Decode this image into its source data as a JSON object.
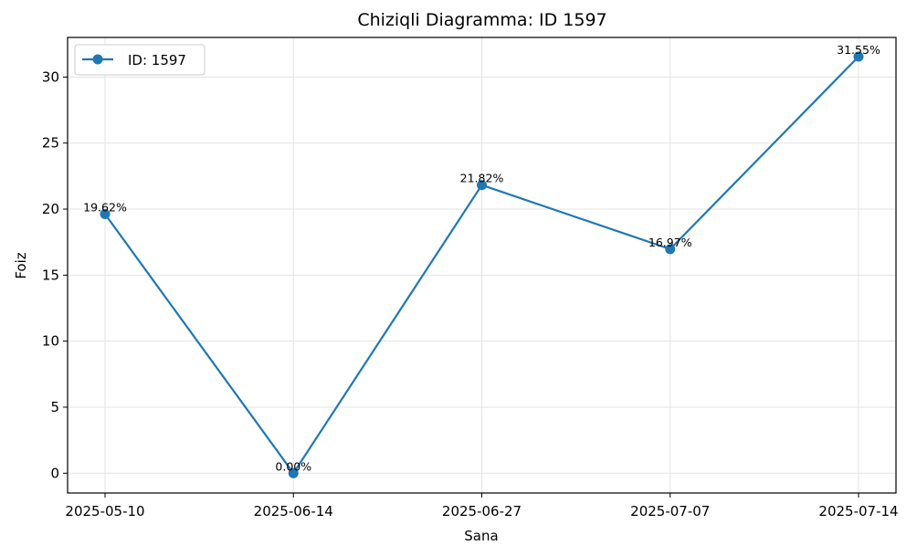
{
  "chart_data": {
    "type": "line",
    "title": "Chiziqli Diagramma: ID 1597",
    "xlabel": "Sana",
    "ylabel": "Foiz",
    "categories": [
      "2025-05-10",
      "2025-06-14",
      "2025-06-27",
      "2025-07-07",
      "2025-07-14"
    ],
    "series": [
      {
        "name": "ID: 1597",
        "values": [
          19.62,
          0.0,
          21.82,
          16.97,
          31.55
        ],
        "labels": [
          "19.62%",
          "0.00%",
          "21.82%",
          "16.97%",
          "31.55%"
        ],
        "color": "#1f77b4"
      }
    ],
    "ylim": [
      -1.5,
      33
    ],
    "yticks": [
      0,
      5,
      10,
      15,
      20,
      25,
      30
    ],
    "grid": true,
    "legend_position": "top-left"
  }
}
